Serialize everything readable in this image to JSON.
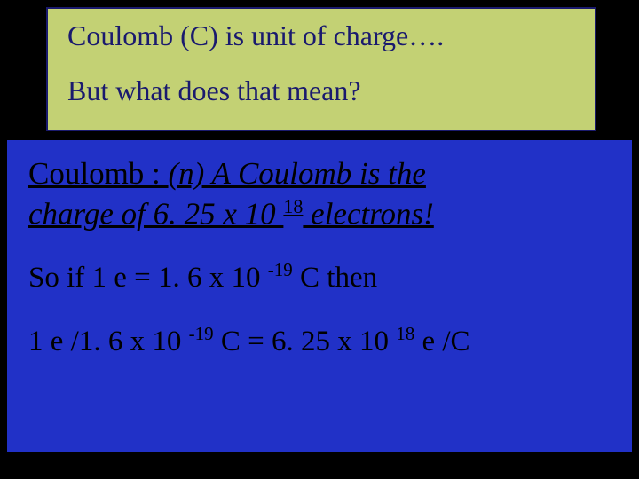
{
  "background_color": "#000000",
  "top_box": {
    "bg_color": "#c3d174",
    "border_color": "#1a1a6e",
    "text_color": "#1a1a6e",
    "font_size_pt": 24,
    "line1": "Coulomb (C)  is unit of charge….",
    "line2": "But what does that mean?"
  },
  "mid_box": {
    "bg_color": "#2131c7",
    "text_color": "#000000",
    "definition": {
      "prefix": "Coulomb : ",
      "italic_part1": "(n) A Coulomb is the",
      "italic_part2a": "charge of 6. 25 x 10 ",
      "exp1": "18",
      "italic_part2b": " electrons!",
      "font_size_pt": 26
    },
    "eq1": {
      "pre": "So if  1 e = 1. 6 x 10 ",
      "exp": "-19",
      "post": " C  then",
      "font_size_pt": 25
    },
    "eq2": {
      "left_a": "1 e /1. 6 x 10 ",
      "left_exp": "-19",
      "left_b": " C  = 6. 25 x 10 ",
      "right_exp": "18",
      "right_b": " e /C",
      "font_size_pt": 25
    }
  }
}
